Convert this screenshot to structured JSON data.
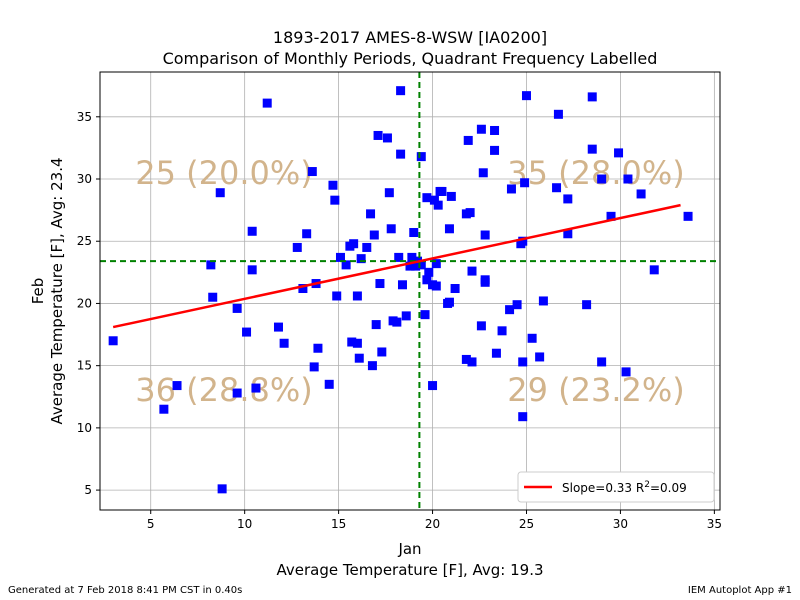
{
  "chart_data": {
    "type": "scatter",
    "title": [
      "1893-2017 AMES-8-WSW [IA0200]",
      "Comparison of Monthly Periods, Quadrant Frequency Labelled"
    ],
    "xlabel": [
      "Jan",
      "Average Temperature [F], Avg: 19.3"
    ],
    "ylabel": [
      "Feb",
      "Average Temperature [F], Avg: 23.4"
    ],
    "xlim": [
      2.3,
      35.3
    ],
    "ylim": [
      3.4,
      38.6
    ],
    "xticks": [
      5,
      10,
      15,
      20,
      25,
      30,
      35
    ],
    "yticks": [
      5,
      10,
      15,
      20,
      25,
      30,
      35
    ],
    "grid": true,
    "x_avg": 19.3,
    "y_avg": 23.4,
    "colors": {
      "points": "#0000ff",
      "fit": "#ff0000",
      "avg_lines": "#008000",
      "quadrant_labels": "#d2b48c"
    },
    "quadrant_labels": {
      "top_left": "25 (20.0%)",
      "top_right": "35 (28.0%)",
      "bottom_left": "36 (28.8%)",
      "bottom_right": "29 (23.2%)"
    },
    "fit": {
      "x": [
        3.0,
        33.2
      ],
      "y": [
        18.1,
        27.9
      ]
    },
    "legend": {
      "label": "Slope=0.33 R$^2$=0.09",
      "label_main": "Slope=0.33 R",
      "label_sup": "2",
      "label_tail": "=0.09",
      "position": "lower-right"
    },
    "points": [
      [
        3.0,
        17.0
      ],
      [
        5.7,
        11.5
      ],
      [
        6.4,
        13.4
      ],
      [
        8.2,
        23.1
      ],
      [
        8.3,
        20.5
      ],
      [
        8.7,
        28.9
      ],
      [
        8.8,
        5.1
      ],
      [
        9.6,
        12.8
      ],
      [
        9.6,
        19.6
      ],
      [
        10.1,
        17.7
      ],
      [
        10.4,
        25.8
      ],
      [
        10.4,
        22.7
      ],
      [
        10.6,
        13.2
      ],
      [
        11.2,
        36.1
      ],
      [
        11.8,
        18.1
      ],
      [
        12.1,
        16.8
      ],
      [
        12.8,
        24.5
      ],
      [
        13.1,
        21.2
      ],
      [
        13.3,
        25.6
      ],
      [
        13.6,
        30.6
      ],
      [
        13.7,
        14.9
      ],
      [
        13.8,
        21.6
      ],
      [
        13.9,
        16.4
      ],
      [
        14.5,
        13.5
      ],
      [
        14.7,
        29.5
      ],
      [
        14.8,
        28.3
      ],
      [
        14.9,
        20.6
      ],
      [
        15.1,
        23.7
      ],
      [
        15.4,
        23.1
      ],
      [
        15.6,
        24.6
      ],
      [
        15.7,
        16.9
      ],
      [
        15.8,
        24.8
      ],
      [
        16.0,
        20.6
      ],
      [
        16.0,
        16.8
      ],
      [
        16.1,
        15.6
      ],
      [
        16.2,
        23.6
      ],
      [
        16.5,
        24.5
      ],
      [
        16.7,
        27.2
      ],
      [
        16.8,
        15.0
      ],
      [
        16.9,
        25.5
      ],
      [
        17.0,
        18.3
      ],
      [
        17.1,
        33.5
      ],
      [
        17.2,
        21.6
      ],
      [
        17.3,
        16.1
      ],
      [
        17.6,
        33.3
      ],
      [
        17.7,
        28.9
      ],
      [
        17.8,
        26.0
      ],
      [
        17.9,
        18.6
      ],
      [
        18.1,
        18.5
      ],
      [
        18.2,
        23.7
      ],
      [
        18.3,
        37.1
      ],
      [
        18.3,
        32.0
      ],
      [
        18.4,
        21.5
      ],
      [
        18.6,
        19.0
      ],
      [
        18.8,
        23.0
      ],
      [
        18.9,
        23.7
      ],
      [
        19.0,
        25.7
      ],
      [
        19.1,
        23.0
      ],
      [
        19.2,
        23.4
      ],
      [
        19.4,
        31.8
      ],
      [
        19.4,
        23.1
      ],
      [
        19.6,
        19.1
      ],
      [
        19.7,
        28.5
      ],
      [
        19.7,
        21.9
      ],
      [
        19.8,
        22.5
      ],
      [
        20.0,
        21.5
      ],
      [
        20.0,
        13.4
      ],
      [
        20.1,
        28.3
      ],
      [
        20.2,
        23.2
      ],
      [
        20.2,
        21.4
      ],
      [
        20.3,
        27.9
      ],
      [
        20.4,
        29.0
      ],
      [
        20.5,
        29.0
      ],
      [
        20.8,
        20.0
      ],
      [
        20.9,
        20.1
      ],
      [
        20.9,
        26.0
      ],
      [
        21.0,
        28.6
      ],
      [
        21.2,
        21.2
      ],
      [
        21.8,
        15.5
      ],
      [
        21.8,
        27.2
      ],
      [
        21.9,
        33.1
      ],
      [
        22.0,
        27.3
      ],
      [
        22.1,
        22.6
      ],
      [
        22.1,
        15.3
      ],
      [
        22.6,
        18.2
      ],
      [
        22.6,
        34.0
      ],
      [
        22.7,
        30.5
      ],
      [
        22.8,
        21.7
      ],
      [
        22.8,
        21.9
      ],
      [
        22.8,
        25.5
      ],
      [
        23.3,
        33.9
      ],
      [
        23.3,
        32.3
      ],
      [
        23.4,
        16.0
      ],
      [
        23.7,
        17.8
      ],
      [
        24.1,
        19.5
      ],
      [
        24.2,
        29.2
      ],
      [
        24.5,
        19.9
      ],
      [
        24.7,
        24.8
      ],
      [
        24.8,
        15.3
      ],
      [
        24.8,
        25.0
      ],
      [
        24.8,
        10.9
      ],
      [
        24.9,
        29.7
      ],
      [
        25.0,
        36.7
      ],
      [
        25.3,
        17.2
      ],
      [
        25.7,
        15.7
      ],
      [
        25.9,
        20.2
      ],
      [
        26.6,
        29.3
      ],
      [
        26.7,
        35.2
      ],
      [
        27.2,
        25.6
      ],
      [
        27.2,
        28.4
      ],
      [
        28.2,
        19.9
      ],
      [
        28.5,
        36.6
      ],
      [
        28.5,
        32.4
      ],
      [
        29.0,
        30.0
      ],
      [
        29.0,
        15.3
      ],
      [
        29.5,
        27.0
      ],
      [
        29.9,
        32.1
      ],
      [
        30.3,
        14.5
      ],
      [
        30.4,
        30.0
      ],
      [
        31.1,
        28.8
      ],
      [
        31.8,
        22.7
      ],
      [
        33.6,
        27.0
      ]
    ]
  },
  "footer": {
    "left": "Generated at 7 Feb 2018 8:41 PM CST in 0.40s",
    "right": "IEM Autoplot App #1"
  }
}
